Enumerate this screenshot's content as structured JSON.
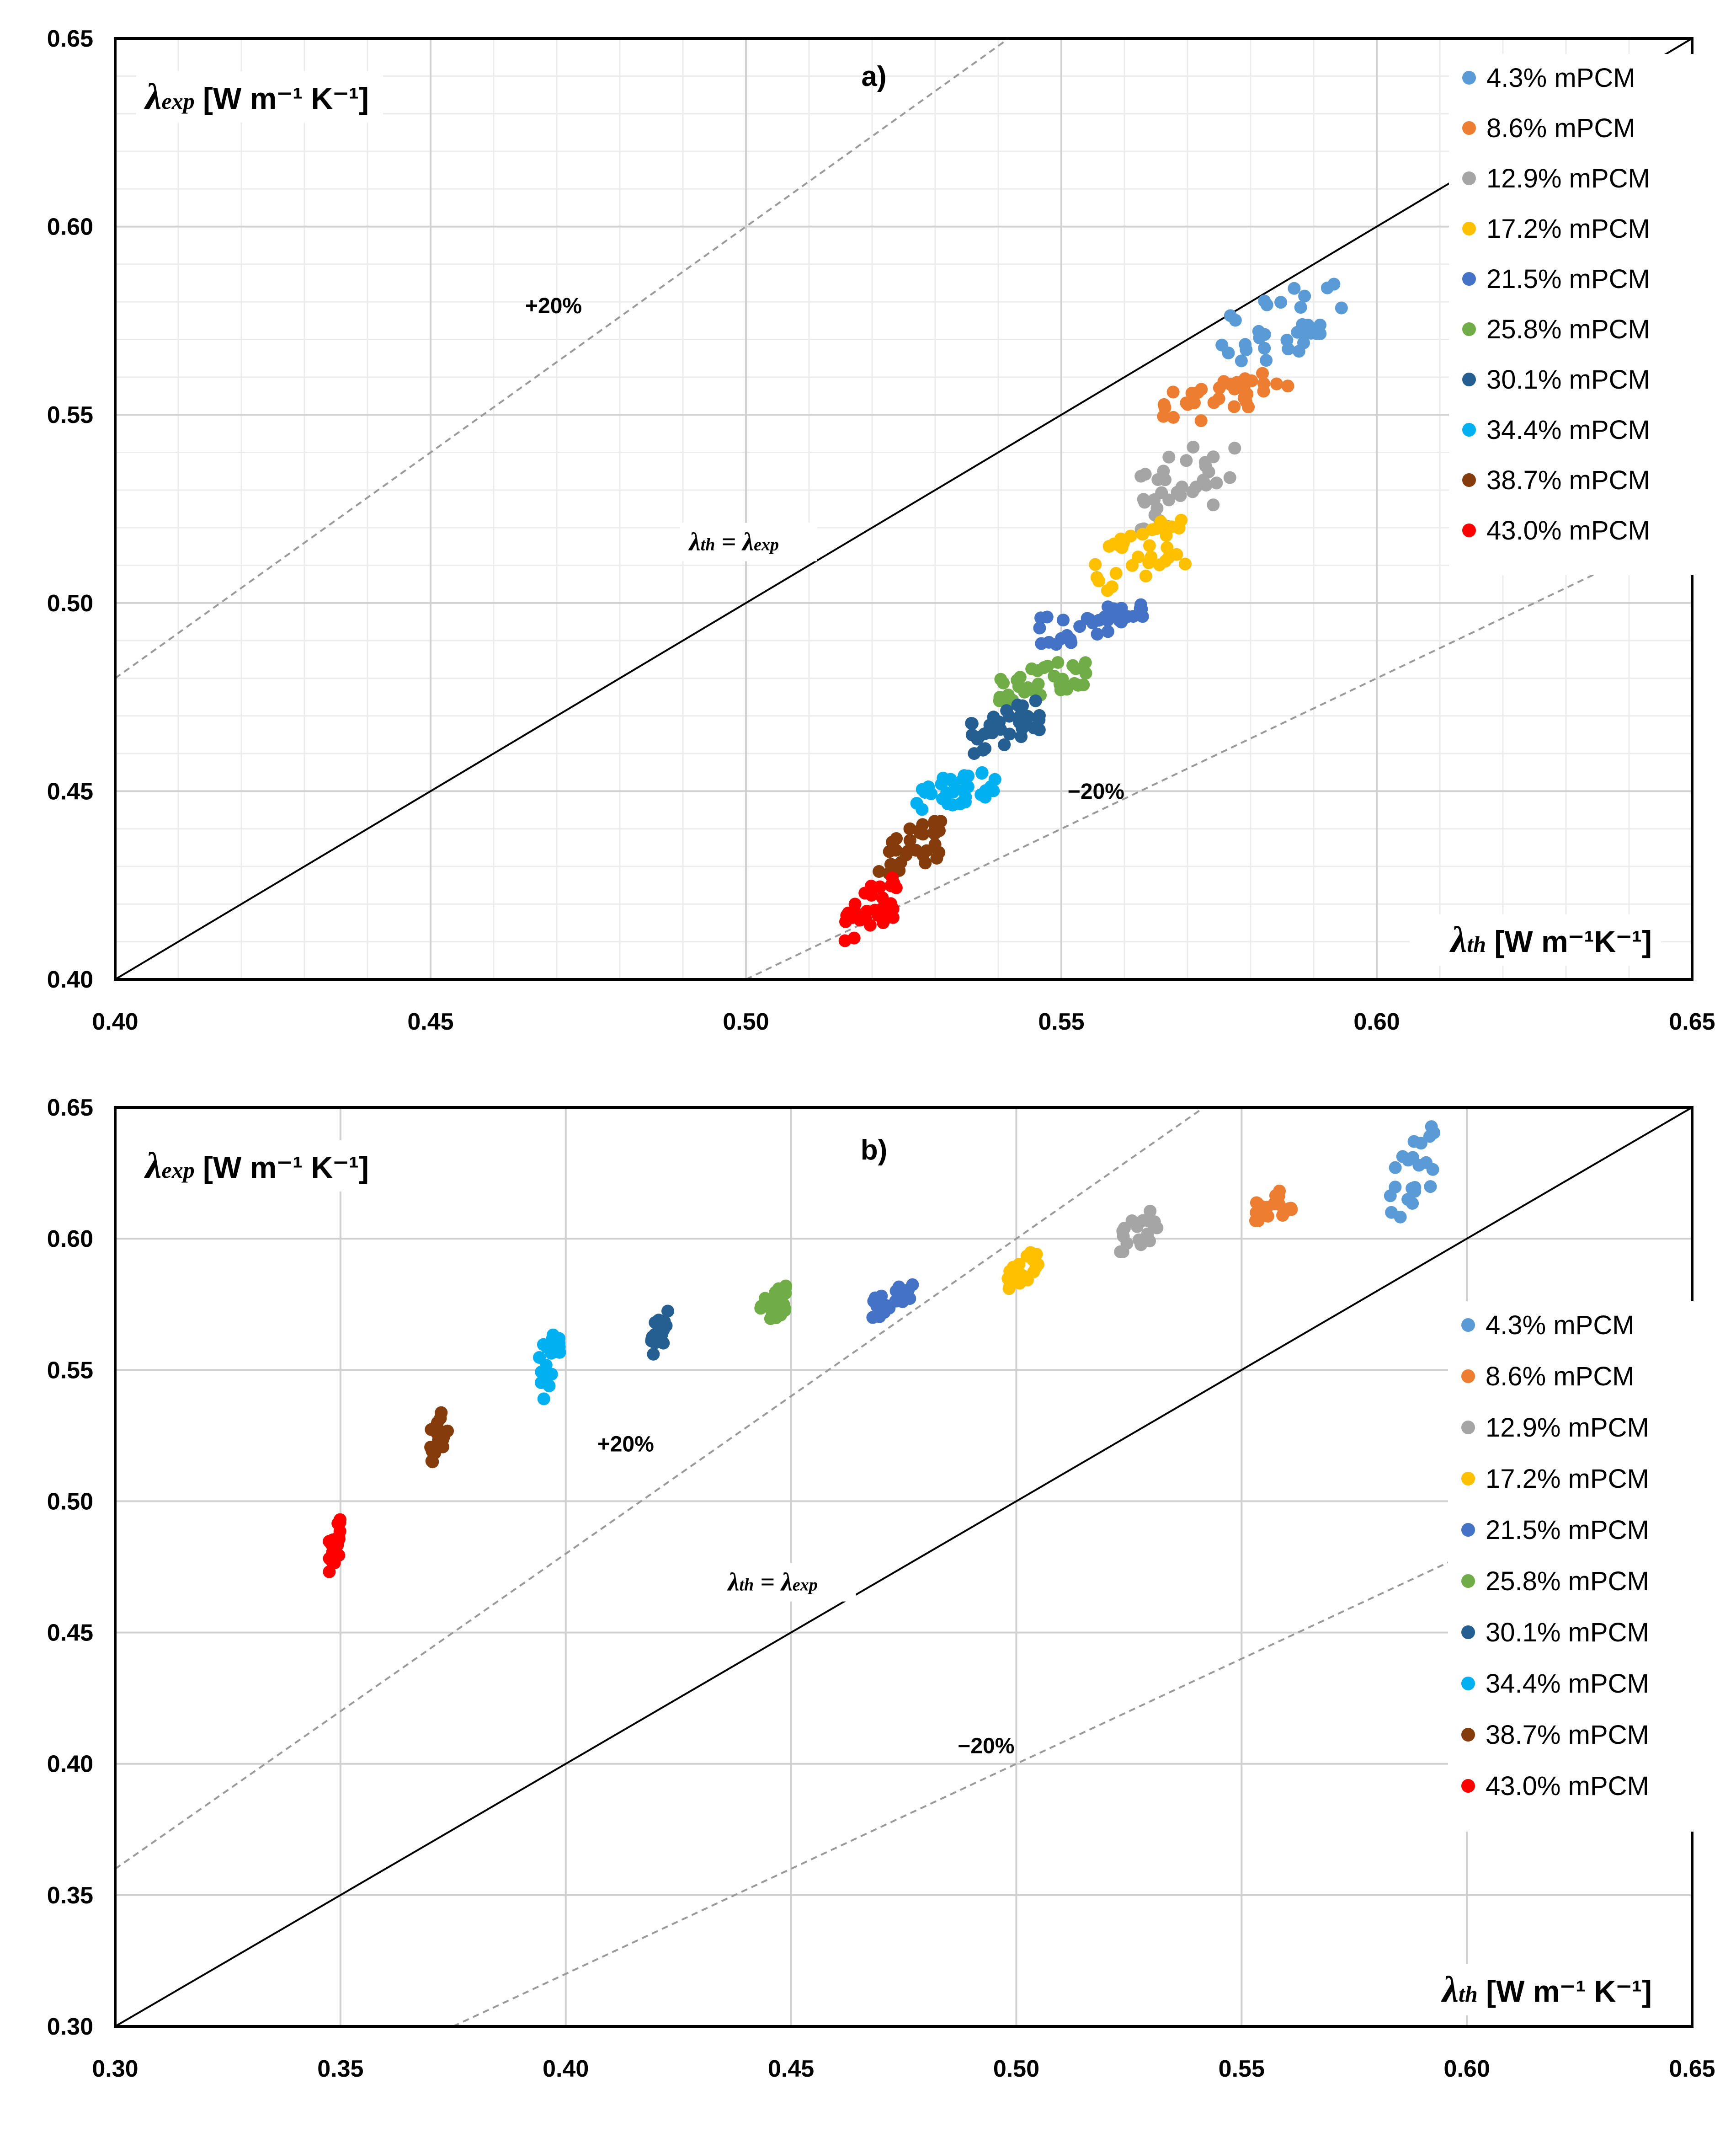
{
  "chart_data": [
    {
      "type": "scatter",
      "title": "a)",
      "xlabel": {
        "symbol": "λ",
        "sub": "th",
        "unit": " [W m⁻¹K⁻¹]"
      },
      "ylabel": {
        "symbol": "λ",
        "sub": "exp",
        "unit": " [W m⁻¹ K⁻¹]"
      },
      "xlim": [
        0.4,
        0.65
      ],
      "ylim": [
        0.4,
        0.65
      ],
      "xticks": [
        "0.40",
        "0.45",
        "0.50",
        "0.55",
        "0.60",
        "0.65"
      ],
      "yticks": [
        "0.40",
        "0.45",
        "0.50",
        "0.55",
        "0.60",
        "0.65"
      ],
      "major_step": 0.05,
      "minor_step": 0.01,
      "legend_position": "top-right",
      "reference_lines": [
        {
          "label": "+20%",
          "slope": 1.2,
          "style": "dashed",
          "label_at": [
            0.465,
            0.577
          ]
        },
        {
          "label": "λth = λexp",
          "slope": 1.0,
          "style": "solid",
          "label_at": [
            0.491,
            0.514
          ]
        },
        {
          "label": "−20%",
          "slope": 0.8,
          "style": "dashed",
          "label_at": [
            0.551,
            0.448
          ]
        }
      ],
      "series": [
        {
          "name": "4.3% mPCM",
          "color": "#5B9BD5",
          "x_range": [
            0.573,
            0.595
          ],
          "y_range": [
            0.562,
            0.585
          ]
        },
        {
          "name": "8.6% mPCM",
          "color": "#ED7D31",
          "x_range": [
            0.566,
            0.586
          ],
          "y_range": [
            0.548,
            0.561
          ]
        },
        {
          "name": "12.9% mPCM",
          "color": "#A5A5A5",
          "x_range": [
            0.561,
            0.578
          ],
          "y_range": [
            0.519,
            0.544
          ]
        },
        {
          "name": "17.2% mPCM",
          "color": "#FFC000",
          "x_range": [
            0.555,
            0.57
          ],
          "y_range": [
            0.503,
            0.522
          ]
        },
        {
          "name": "21.5% mPCM",
          "color": "#4472C4",
          "x_range": [
            0.546,
            0.563
          ],
          "y_range": [
            0.489,
            0.5
          ]
        },
        {
          "name": "25.8% mPCM",
          "color": "#70AD47",
          "x_range": [
            0.54,
            0.555
          ],
          "y_range": [
            0.474,
            0.485
          ]
        },
        {
          "name": "30.1% mPCM",
          "color": "#255E91",
          "x_range": [
            0.534,
            0.547
          ],
          "y_range": [
            0.46,
            0.474
          ]
        },
        {
          "name": "34.4% mPCM",
          "color": "#00B0F0",
          "x_range": [
            0.527,
            0.54
          ],
          "y_range": [
            0.445,
            0.456
          ]
        },
        {
          "name": "38.7% mPCM",
          "color": "#843C0C",
          "x_range": [
            0.521,
            0.531
          ],
          "y_range": [
            0.427,
            0.442
          ]
        },
        {
          "name": "43.0% mPCM",
          "color": "#FF0000",
          "x_range": [
            0.515,
            0.524
          ],
          "y_range": [
            0.41,
            0.427
          ]
        }
      ]
    },
    {
      "type": "scatter",
      "title": "b)",
      "xlabel": {
        "symbol": "λ",
        "sub": "th",
        "unit": " [W m⁻¹ K⁻¹]"
      },
      "ylabel": {
        "symbol": "λ",
        "sub": "exp",
        "unit": " [W m⁻¹ K⁻¹]"
      },
      "xlim": [
        0.3,
        0.65
      ],
      "ylim": [
        0.3,
        0.65
      ],
      "xticks": [
        "0.30",
        "0.35",
        "0.40",
        "0.45",
        "0.50",
        "0.55",
        "0.60",
        "0.65"
      ],
      "yticks": [
        "0.30",
        "0.35",
        "0.40",
        "0.45",
        "0.50",
        "0.55",
        "0.60",
        "0.65"
      ],
      "major_step": 0.05,
      "minor_step": 0,
      "legend_position": "right",
      "reference_lines": [
        {
          "label": "+20%",
          "slope": 1.2,
          "style": "dashed",
          "label_at": [
            0.407,
            0.519
          ]
        },
        {
          "label": "λth = λexp",
          "slope": 1.0,
          "style": "solid",
          "label_at": [
            0.436,
            0.466
          ]
        },
        {
          "label": "−20%",
          "slope": 0.8,
          "style": "dashed",
          "label_at": [
            0.487,
            0.404
          ]
        }
      ],
      "series": [
        {
          "name": "4.3% mPCM",
          "color": "#5B9BD5",
          "x_range": [
            0.583,
            0.593
          ],
          "y_range": [
            0.608,
            0.644
          ]
        },
        {
          "name": "8.6% mPCM",
          "color": "#ED7D31",
          "x_range": [
            0.553,
            0.562
          ],
          "y_range": [
            0.605,
            0.62
          ]
        },
        {
          "name": "12.9% mPCM",
          "color": "#A5A5A5",
          "x_range": [
            0.523,
            0.532
          ],
          "y_range": [
            0.595,
            0.612
          ]
        },
        {
          "name": "17.2% mPCM",
          "color": "#FFC000",
          "x_range": [
            0.497,
            0.505
          ],
          "y_range": [
            0.581,
            0.595
          ]
        },
        {
          "name": "21.5% mPCM",
          "color": "#4472C4",
          "x_range": [
            0.468,
            0.477
          ],
          "y_range": [
            0.57,
            0.583
          ]
        },
        {
          "name": "25.8% mPCM",
          "color": "#70AD47",
          "x_range": [
            0.443,
            0.449
          ],
          "y_range": [
            0.566,
            0.582
          ]
        },
        {
          "name": "30.1% mPCM",
          "color": "#255E91",
          "x_range": [
            0.419,
            0.423
          ],
          "y_range": [
            0.556,
            0.573
          ]
        },
        {
          "name": "34.4% mPCM",
          "color": "#00B0F0",
          "x_range": [
            0.394,
            0.399
          ],
          "y_range": [
            0.539,
            0.569
          ]
        },
        {
          "name": "38.7% mPCM",
          "color": "#843C0C",
          "x_range": [
            0.37,
            0.374
          ],
          "y_range": [
            0.515,
            0.536
          ]
        },
        {
          "name": "43.0% mPCM",
          "color": "#FF0000",
          "x_range": [
            0.347,
            0.35
          ],
          "y_range": [
            0.472,
            0.493
          ]
        }
      ]
    }
  ]
}
